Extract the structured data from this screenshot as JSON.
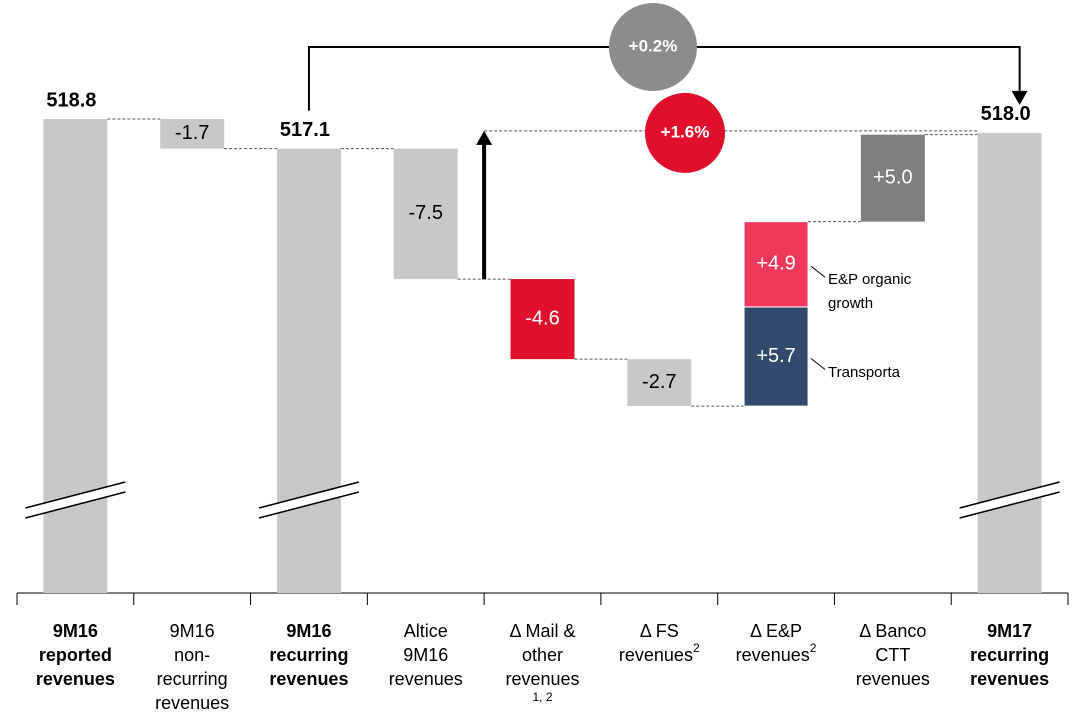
{
  "chart_data": {
    "type": "waterfall",
    "categories": [
      {
        "lines": [
          "9M16",
          "reported",
          "revenues"
        ]
      },
      {
        "lines": [
          "9M16",
          "non-",
          "recurring",
          "revenues"
        ]
      },
      {
        "lines": [
          "9M16",
          "recurring",
          "revenues"
        ]
      },
      {
        "lines": [
          "Altice",
          "9M16",
          "revenues"
        ]
      },
      {
        "lines": [
          "Δ Mail &",
          "other",
          "revenues"
        ],
        "note": "1, 2"
      },
      {
        "lines": [
          "Δ FS",
          "revenues"
        ],
        "sup": "2"
      },
      {
        "lines": [
          "Δ E&P",
          "revenues"
        ],
        "sup": "2"
      },
      {
        "lines": [
          "Δ Banco",
          "CTT",
          "revenues"
        ]
      },
      {
        "lines": [
          "9M17",
          "recurring",
          "revenues"
        ]
      }
    ],
    "bars": [
      {
        "total": true,
        "value": 518.8,
        "value_label": "518.8",
        "color": "#c8c8c8"
      },
      {
        "segments": [
          {
            "value": -1.7,
            "value_label": "-1.7",
            "color": "#c8c8c8",
            "text_color": "#000000"
          }
        ]
      },
      {
        "total": true,
        "value": 517.1,
        "value_label": "517.1",
        "color": "#c8c8c8"
      },
      {
        "segments": [
          {
            "value": -7.5,
            "value_label": "-7.5",
            "color": "#c8c8c8",
            "text_color": "#000000"
          }
        ]
      },
      {
        "segments": [
          {
            "value": -4.6,
            "value_label": "-4.6",
            "color": "#e0102a",
            "text_color": "#ffffff"
          }
        ]
      },
      {
        "segments": [
          {
            "value": -2.7,
            "value_label": "-2.7",
            "color": "#c8c8c8",
            "text_color": "#000000"
          }
        ]
      },
      {
        "segments": [
          {
            "name": "Transporta",
            "value": 5.7,
            "value_label": "+5.7",
            "color": "#34496e",
            "text_color": "#ffffff"
          },
          {
            "name": "E&P organic growth",
            "value": 4.9,
            "value_label": "+4.9",
            "color": "#f0385a",
            "text_color": "#ffffff"
          }
        ]
      },
      {
        "segments": [
          {
            "value": 5.0,
            "value_label": "+5.0",
            "color": "#7f7f7f",
            "text_color": "#ffffff"
          }
        ]
      },
      {
        "total": true,
        "value": 518.0,
        "value_label": "518.0",
        "color": "#c8c8c8"
      }
    ],
    "annotations": [
      {
        "label": "+0.2%",
        "color": "#8c8c8c"
      },
      {
        "label": "+1.6%",
        "color": "#e0102a"
      }
    ]
  }
}
